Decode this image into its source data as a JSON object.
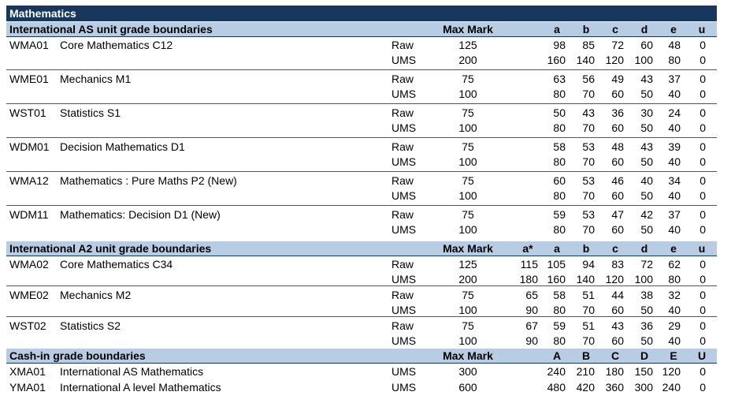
{
  "title": "Mathematics",
  "sections": [
    {
      "heading": "International AS unit grade boundaries",
      "max_mark_header": "Max Mark",
      "grade_headers": [
        "a",
        "b",
        "c",
        "d",
        "e",
        "u"
      ],
      "units": [
        {
          "code": "WMA01",
          "name": "Core Mathematics C12",
          "rows": [
            {
              "type": "Raw",
              "max_mark": 125,
              "grades": [
                98,
                85,
                72,
                60,
                48,
                0
              ]
            },
            {
              "type": "UMS",
              "max_mark": 200,
              "grades": [
                160,
                140,
                120,
                100,
                80,
                0
              ]
            }
          ]
        },
        {
          "code": "WME01",
          "name": "Mechanics M1",
          "rows": [
            {
              "type": "Raw",
              "max_mark": 75,
              "grades": [
                63,
                56,
                49,
                43,
                37,
                0
              ]
            },
            {
              "type": "UMS",
              "max_mark": 100,
              "grades": [
                80,
                70,
                60,
                50,
                40,
                0
              ]
            }
          ]
        },
        {
          "code": "WST01",
          "name": "Statistics S1",
          "rows": [
            {
              "type": "Raw",
              "max_mark": 75,
              "grades": [
                50,
                43,
                36,
                30,
                24,
                0
              ]
            },
            {
              "type": "UMS",
              "max_mark": 100,
              "grades": [
                80,
                70,
                60,
                50,
                40,
                0
              ]
            }
          ]
        },
        {
          "code": "WDM01",
          "name": "Decision Mathematics D1",
          "rows": [
            {
              "type": "Raw",
              "max_mark": 75,
              "grades": [
                58,
                53,
                48,
                43,
                39,
                0
              ]
            },
            {
              "type": "UMS",
              "max_mark": 100,
              "grades": [
                80,
                70,
                60,
                50,
                40,
                0
              ]
            }
          ]
        },
        {
          "code": "WMA12",
          "name": "Mathematics : Pure Maths P2 (New)",
          "rows": [
            {
              "type": "Raw",
              "max_mark": 75,
              "grades": [
                60,
                53,
                46,
                40,
                34,
                0
              ]
            },
            {
              "type": "UMS",
              "max_mark": 100,
              "grades": [
                80,
                70,
                60,
                50,
                40,
                0
              ]
            }
          ]
        },
        {
          "code": "WDM11",
          "name": "Mathematics: Decision D1 (New)",
          "rows": [
            {
              "type": "Raw",
              "max_mark": 75,
              "grades": [
                59,
                53,
                47,
                42,
                37,
                0
              ]
            },
            {
              "type": "UMS",
              "max_mark": 100,
              "grades": [
                80,
                70,
                60,
                50,
                40,
                0
              ]
            }
          ]
        }
      ]
    },
    {
      "heading": "International A2 unit grade boundaries",
      "max_mark_header": "Max Mark",
      "grade_headers": [
        "a*",
        "a",
        "b",
        "c",
        "d",
        "e",
        "u"
      ],
      "units": [
        {
          "code": "WMA02",
          "name": "Core Mathematics C34",
          "rows": [
            {
              "type": "Raw",
              "max_mark": 125,
              "grades": [
                115,
                105,
                94,
                83,
                72,
                62,
                0
              ]
            },
            {
              "type": "UMS",
              "max_mark": 200,
              "grades": [
                180,
                160,
                140,
                120,
                100,
                80,
                0
              ]
            }
          ]
        },
        {
          "code": "WME02",
          "name": "Mechanics M2",
          "rows": [
            {
              "type": "Raw",
              "max_mark": 75,
              "grades": [
                65,
                58,
                51,
                44,
                38,
                32,
                0
              ]
            },
            {
              "type": "UMS",
              "max_mark": 100,
              "grades": [
                90,
                80,
                70,
                60,
                50,
                40,
                0
              ]
            }
          ]
        },
        {
          "code": "WST02",
          "name": "Statistics S2",
          "rows": [
            {
              "type": "Raw",
              "max_mark": 75,
              "grades": [
                67,
                59,
                51,
                43,
                36,
                29,
                0
              ]
            },
            {
              "type": "UMS",
              "max_mark": 100,
              "grades": [
                90,
                80,
                70,
                60,
                50,
                40,
                0
              ]
            }
          ]
        }
      ]
    },
    {
      "heading": "Cash-in grade boundaries",
      "max_mark_header": "Max Mark",
      "grade_headers": [
        "A",
        "B",
        "C",
        "D",
        "E",
        "U"
      ],
      "units": [
        {
          "code": "XMA01",
          "name": "International AS Mathematics",
          "rows": [
            {
              "type": "UMS",
              "max_mark": 300,
              "grades": [
                240,
                210,
                180,
                150,
                120,
                0
              ]
            }
          ]
        },
        {
          "code": "YMA01",
          "name": "International A level Mathematics",
          "rows": [
            {
              "type": "UMS",
              "max_mark": 600,
              "grades": [
                480,
                420,
                360,
                300,
                240,
                0
              ]
            }
          ]
        }
      ]
    }
  ]
}
